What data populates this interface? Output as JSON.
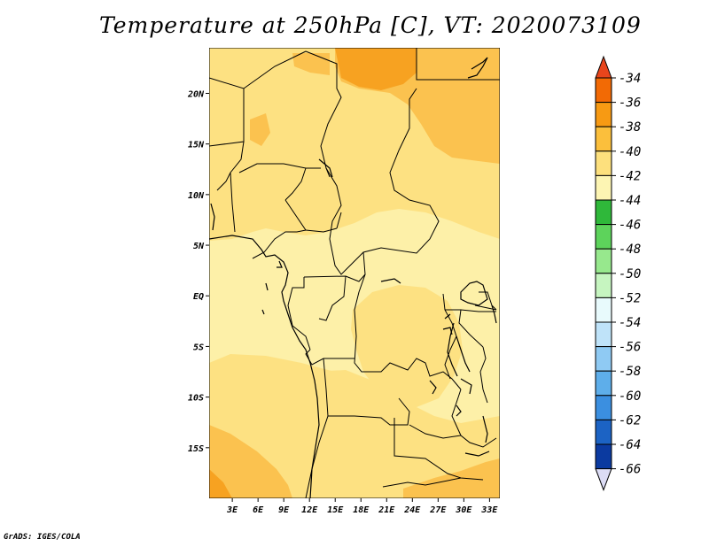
{
  "title": "Temperature at 250hPa [C], VT: 2020073109",
  "credit": "GrADS: IGES/COLA",
  "map": {
    "lat_labels": [
      "20N",
      "15N",
      "10N",
      "5N",
      "EQ",
      "5S",
      "10S",
      "15S"
    ],
    "lon_labels": [
      "3E",
      "6E",
      "9E",
      "12E",
      "15E",
      "18E",
      "21E",
      "24E",
      "27E",
      "30E",
      "33E"
    ],
    "lat_range": [
      -20,
      24.5
    ],
    "lon_range": [
      0.3,
      34.2
    ],
    "colors": {
      "level_42": "#fdf0a8",
      "level_40": "#fde182",
      "level_38": "#fbc24f",
      "level_36": "#f7a221"
    }
  },
  "colorbar": {
    "levels": [
      "-34",
      "-36",
      "-38",
      "-40",
      "-42",
      "-44",
      "-46",
      "-48",
      "-50",
      "-52",
      "-54",
      "-56",
      "-58",
      "-60",
      "-62",
      "-64",
      "-66"
    ],
    "colors": [
      "#e8451c",
      "#f26a05",
      "#f79a13",
      "#fbbf3c",
      "#fde07d",
      "#fdf5b3",
      "#2fb83a",
      "#5dd35b",
      "#97e88d",
      "#c6f5c0",
      "#e8fafc",
      "#bfe3f9",
      "#8fcaf3",
      "#5eaeea",
      "#3b8fe0",
      "#1c63c4",
      "#0b3aa0",
      "#071a6b",
      "#dcdcf5"
    ]
  }
}
